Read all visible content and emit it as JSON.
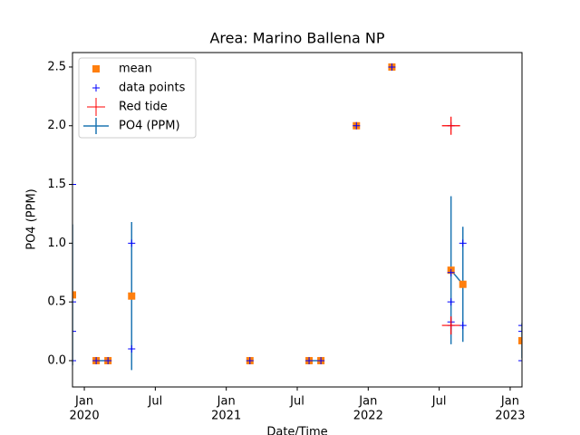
{
  "chart_data": {
    "type": "scatter",
    "title": "Area: Marino Ballena NP",
    "xlabel": "Date/Time",
    "ylabel": "PO4 (PPM)",
    "x": [
      "2019-12",
      "2020-02",
      "2020-03",
      "2020-05",
      "2021-03",
      "2021-08",
      "2021-09",
      "2021-12",
      "2022-03",
      "2022-08",
      "2022-09",
      "2023-02"
    ],
    "series": [
      {
        "name": "mean",
        "color": "#ff7f0e",
        "marker": "square",
        "values": [
          0.56,
          0,
          0,
          0.55,
          0,
          0,
          0,
          2.0,
          2.5,
          0.77,
          0.65,
          0.17
        ]
      },
      {
        "name": "data points",
        "color": "#0000ff",
        "marker": "plus",
        "x": [
          "2019-12",
          "2019-12",
          "2019-12",
          "2019-12",
          "2020-02",
          "2020-03",
          "2020-05",
          "2020-05",
          "2021-03",
          "2021-08",
          "2021-09",
          "2021-12",
          "2022-03",
          "2022-08",
          "2022-08",
          "2022-08",
          "2022-08",
          "2022-08",
          "2022-09",
          "2022-09",
          "2023-02",
          "2023-02",
          "2023-02"
        ],
        "values": [
          1.5,
          0.5,
          0.25,
          0,
          0,
          0,
          1.0,
          0.1,
          0,
          0,
          0,
          2.0,
          2.5,
          2.0,
          0.75,
          0.5,
          0.33,
          0.3,
          1.0,
          0.3,
          0.3,
          0.25,
          0
        ]
      },
      {
        "name": "Red tide",
        "color": "#ff0000",
        "marker": "bigplus",
        "x": [
          "2022-08",
          "2022-08"
        ],
        "values": [
          2.0,
          0.3
        ]
      },
      {
        "name": "PO4 (PPM)",
        "color": "#1f77b4",
        "marker": "errorbar",
        "values": [
          0.56,
          0,
          0,
          0.55,
          0,
          0,
          0,
          2.0,
          2.5,
          0.77,
          0.65,
          0.17
        ],
        "errors": [
          0.6,
          0,
          0,
          0.63,
          0,
          0,
          0,
          0,
          0,
          0.63,
          0.49,
          0.15
        ]
      }
    ],
    "xlim": [
      "2019-12",
      "2023-02"
    ],
    "xticks": [
      {
        "value": "2020-01",
        "label": "Jan"
      },
      {
        "value": "2020-07",
        "label": "Jul"
      },
      {
        "value": "2021-01",
        "label": "Jan"
      },
      {
        "value": "2021-07",
        "label": "Jul"
      },
      {
        "value": "2022-01",
        "label": "Jan"
      },
      {
        "value": "2022-07",
        "label": "Jul"
      },
      {
        "value": "2023-01",
        "label": "Jan"
      }
    ],
    "xyears": [
      {
        "value": "2020-01",
        "label": "2020"
      },
      {
        "value": "2021-01",
        "label": "2021"
      },
      {
        "value": "2022-01",
        "label": "2022"
      },
      {
        "value": "2023-01",
        "label": "2023"
      }
    ],
    "ylim": [
      -0.224,
      2.623
    ],
    "yticks": [
      {
        "value": 0,
        "label": "0.0"
      },
      0.5,
      {
        "value": 1,
        "label": "1.0"
      },
      1.5,
      {
        "value": 2,
        "label": "2.0"
      },
      2.5
    ],
    "legend": "upper left"
  }
}
